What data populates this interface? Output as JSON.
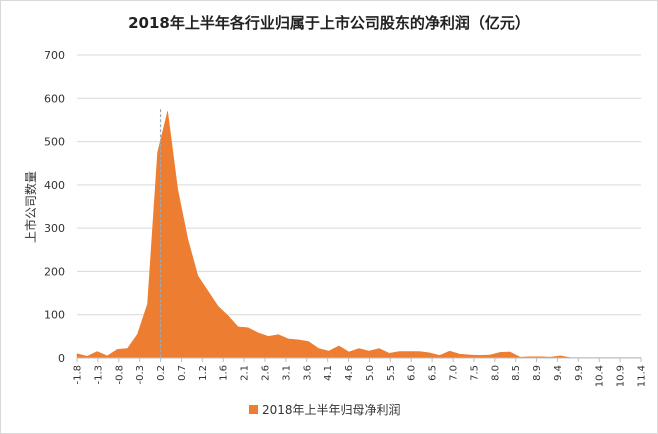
{
  "chart_data": {
    "type": "area",
    "title": "2018年上半年各行业归属于上市公司股东的净利润（亿元）",
    "ylabel": "上市公司数量",
    "xlabel": "",
    "ylim": [
      0,
      700
    ],
    "yticks": [
      0,
      100,
      200,
      300,
      400,
      500,
      600,
      700
    ],
    "xticks": [
      "-1.8",
      "-1.3",
      "-0.8",
      "-0.3",
      "0.2",
      "0.7",
      "1.2",
      "1.6",
      "2.1",
      "2.6",
      "3.1",
      "3.6",
      "4.1",
      "4.6",
      "5.0",
      "5.5",
      "6.0",
      "6.5",
      "7.0",
      "7.5",
      "8.0",
      "8.5",
      "8.9",
      "9.4",
      "9.9",
      "10.4",
      "10.9",
      "11.4"
    ],
    "grid": true,
    "legend_position": "bottom",
    "color": "#ED7D31",
    "series": [
      {
        "name": "2018年上半年归母净利润",
        "values": [
          10,
          4,
          15,
          5,
          20,
          22,
          55,
          125,
          475,
          570,
          390,
          275,
          190,
          155,
          120,
          98,
          72,
          70,
          58,
          50,
          54,
          44,
          42,
          38,
          22,
          16,
          28,
          14,
          22,
          16,
          22,
          11,
          15,
          15,
          15,
          12,
          6,
          16,
          9,
          7,
          6,
          7,
          13,
          14,
          2,
          3,
          3,
          2,
          5,
          1,
          1,
          1,
          1,
          1,
          1,
          1,
          1
        ]
      }
    ],
    "annotations": [
      "vertical dashed reference line at 0.2"
    ]
  }
}
